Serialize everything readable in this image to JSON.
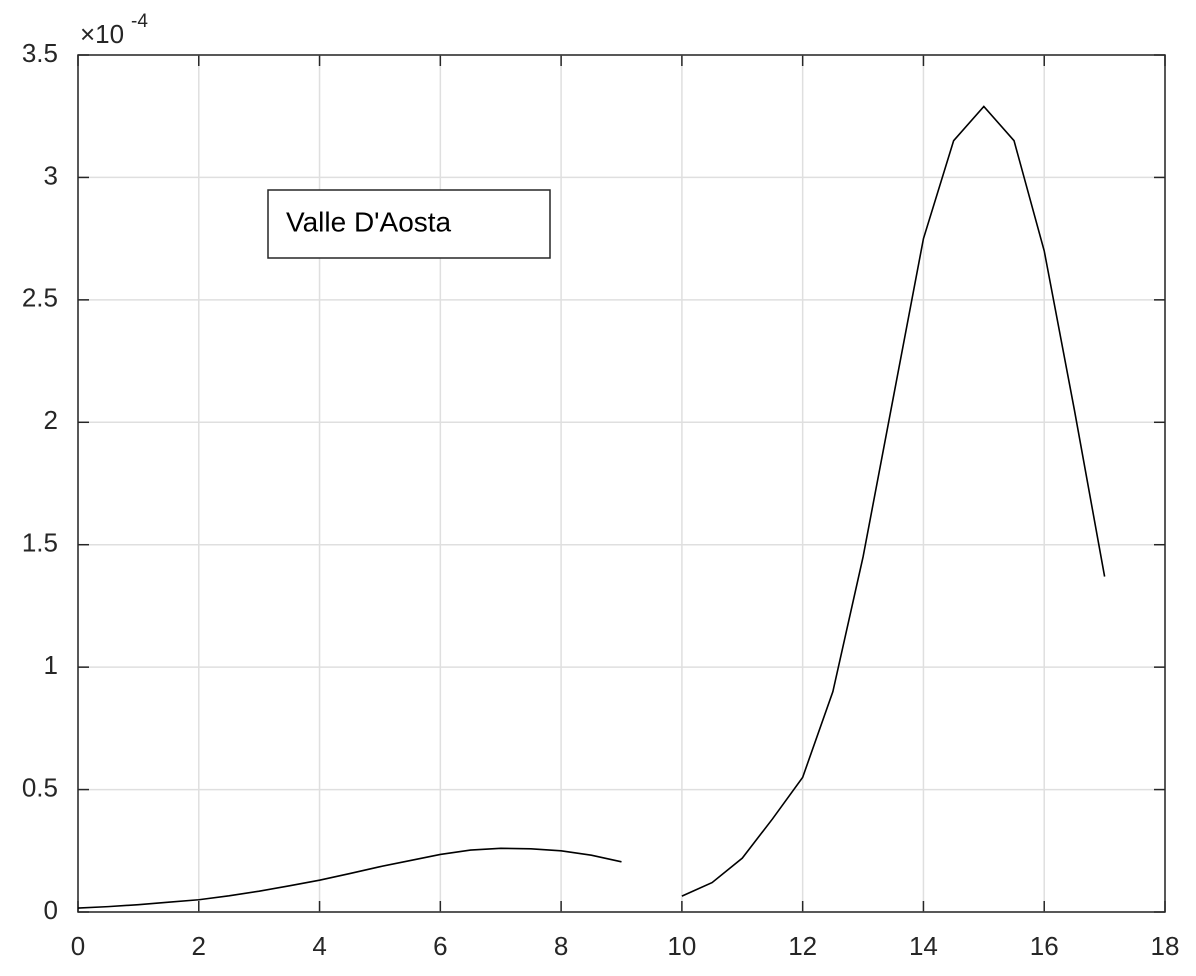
{
  "chart_data": {
    "type": "line",
    "x": [
      0,
      0.5,
      1,
      1.5,
      2,
      2.5,
      3,
      3.5,
      4,
      4.5,
      5,
      5.5,
      6,
      6.5,
      7,
      7.5,
      8,
      8.5,
      9,
      9.5,
      10,
      10.5,
      11,
      11.5,
      12,
      12.5,
      13,
      13.5,
      14,
      14.5,
      15,
      15.5,
      16,
      16.5,
      17
    ],
    "series": [
      {
        "name": "Valle D'Aosta",
        "color": "#000000",
        "values": [
          0.016,
          0.022,
          0.03,
          0.04,
          0.05,
          0.066,
          0.085,
          0.107,
          0.13,
          0.157,
          0.185,
          0.21,
          0.235,
          0.253,
          0.26,
          0.258,
          0.25,
          0.232,
          0.205,
          null,
          0.065,
          0.12,
          0.22,
          0.38,
          0.55,
          0.9,
          1.45,
          2.1,
          2.75,
          3.15,
          3.29,
          3.15,
          2.7,
          2.05,
          1.37
        ]
      }
    ],
    "xlim": [
      0,
      18
    ],
    "xticks": [
      0,
      2,
      4,
      6,
      8,
      10,
      12,
      14,
      16,
      18
    ],
    "ylim": [
      0,
      3.5
    ],
    "yticks": [
      0,
      0.5,
      1,
      1.5,
      2,
      2.5,
      3,
      3.5
    ],
    "y_multiplier": {
      "base": "×10",
      "exponent": "-4"
    },
    "grid": true,
    "legend": "upper left"
  }
}
